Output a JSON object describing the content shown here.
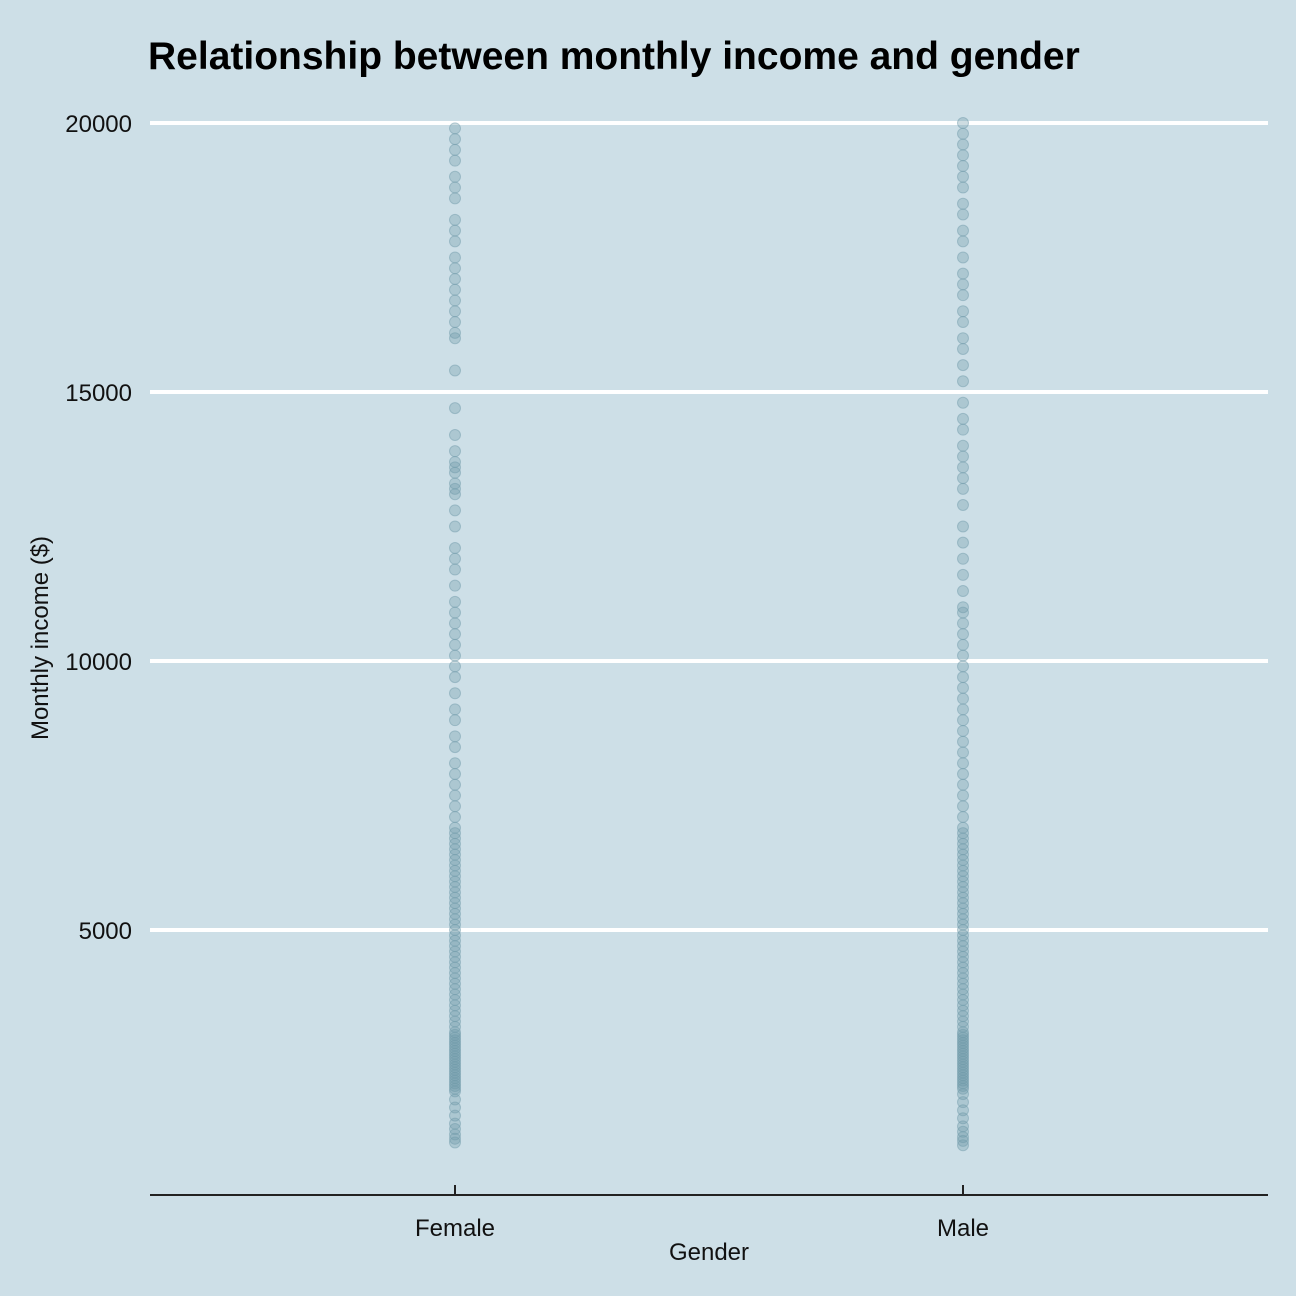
{
  "chart_data": {
    "type": "scatter",
    "title": "Relationship between monthly income and gender",
    "xlabel": "Gender",
    "ylabel": "Monthly income ($)",
    "categories": [
      "Female",
      "Male"
    ],
    "y_ticks": [
      5000,
      10000,
      15000,
      20000
    ],
    "y_tick_labels": [
      "5000",
      "10000",
      "15000",
      "20000"
    ],
    "ylim": [
      0,
      20000
    ],
    "grid": "horizontal major lines, white",
    "legend": "none",
    "series": [
      {
        "category": "Female",
        "values": [
          1050,
          1120,
          1200,
          1300,
          1400,
          1550,
          1700,
          1850,
          2000,
          2050,
          2100,
          2150,
          2200,
          2250,
          2300,
          2350,
          2400,
          2450,
          2500,
          2550,
          2600,
          2650,
          2700,
          2750,
          2800,
          2850,
          2900,
          2950,
          3000,
          3050,
          3100,
          3200,
          3300,
          3400,
          3500,
          3600,
          3700,
          3800,
          3900,
          4000,
          4100,
          4200,
          4300,
          4400,
          4500,
          4600,
          4700,
          4800,
          4900,
          5000,
          5100,
          5200,
          5300,
          5400,
          5500,
          5600,
          5700,
          5800,
          5900,
          6000,
          6100,
          6200,
          6300,
          6400,
          6500,
          6600,
          6700,
          6800,
          6900,
          7100,
          7300,
          7500,
          7700,
          7900,
          8100,
          8400,
          8600,
          8900,
          9100,
          9400,
          9700,
          9900,
          10100,
          10300,
          10500,
          10700,
          10900,
          11100,
          11400,
          11700,
          11900,
          12100,
          12500,
          12800,
          13100,
          13200,
          13300,
          13500,
          13600,
          13700,
          13900,
          14200,
          14700,
          15400,
          16000,
          16100,
          16300,
          16500,
          16700,
          16900,
          17100,
          17300,
          17500,
          17800,
          18000,
          18200,
          18600,
          18800,
          19000,
          19300,
          19500,
          19700,
          19900
        ]
      },
      {
        "category": "Male",
        "values": [
          1000,
          1080,
          1150,
          1250,
          1350,
          1500,
          1650,
          1800,
          1950,
          2050,
          2100,
          2150,
          2200,
          2250,
          2300,
          2350,
          2400,
          2450,
          2500,
          2550,
          2600,
          2650,
          2700,
          2750,
          2800,
          2850,
          2900,
          2950,
          3000,
          3050,
          3100,
          3200,
          3300,
          3400,
          3500,
          3600,
          3700,
          3800,
          3900,
          4000,
          4100,
          4200,
          4300,
          4400,
          4500,
          4600,
          4700,
          4800,
          4900,
          5000,
          5100,
          5200,
          5300,
          5400,
          5500,
          5600,
          5700,
          5800,
          5900,
          6000,
          6100,
          6200,
          6300,
          6400,
          6500,
          6600,
          6700,
          6800,
          6900,
          7100,
          7300,
          7500,
          7700,
          7900,
          8100,
          8300,
          8500,
          8700,
          8900,
          9100,
          9300,
          9500,
          9700,
          9900,
          10100,
          10300,
          10500,
          10700,
          10900,
          11000,
          11300,
          11600,
          11900,
          12200,
          12500,
          12900,
          13200,
          13400,
          13600,
          13800,
          14000,
          14300,
          14500,
          14800,
          15200,
          15500,
          15800,
          16000,
          16300,
          16500,
          16800,
          17000,
          17200,
          17500,
          17800,
          18000,
          18300,
          18500,
          18800,
          19000,
          19200,
          19400,
          19600,
          19800,
          20000
        ]
      }
    ],
    "colors": {
      "background": "#cddfe7",
      "grid": "#ffffff",
      "point": "#6f9aa8",
      "axis": "#222222"
    }
  }
}
